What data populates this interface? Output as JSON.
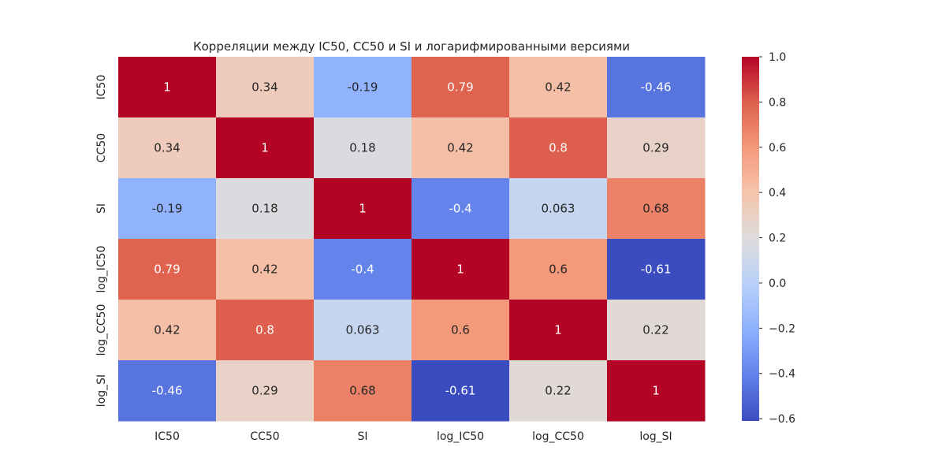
{
  "chart_data": {
    "type": "heatmap",
    "title": "Корреляции между IC50, CC50 и SI и логарифмированными версиями",
    "x_labels": [
      "IC50",
      "CC50",
      "SI",
      "log_IC50",
      "log_CC50",
      "log_SI"
    ],
    "y_labels": [
      "IC50",
      "CC50",
      "SI",
      "log_IC50",
      "log_CC50",
      "log_SI"
    ],
    "values": [
      [
        1,
        0.34,
        -0.19,
        0.79,
        0.42,
        -0.46
      ],
      [
        0.34,
        1,
        0.18,
        0.42,
        0.8,
        0.29
      ],
      [
        -0.19,
        0.18,
        1,
        -0.4,
        0.063,
        0.68
      ],
      [
        0.79,
        0.42,
        -0.4,
        1,
        0.6,
        -0.61
      ],
      [
        0.42,
        0.8,
        0.063,
        0.6,
        1,
        0.22
      ],
      [
        -0.46,
        0.29,
        0.68,
        -0.61,
        0.22,
        1
      ]
    ],
    "value_labels": [
      [
        "1",
        "0.34",
        "-0.19",
        "0.79",
        "0.42",
        "-0.46"
      ],
      [
        "0.34",
        "1",
        "0.18",
        "0.42",
        "0.8",
        "0.29"
      ],
      [
        "-0.19",
        "0.18",
        "1",
        "-0.4",
        "0.063",
        "0.68"
      ],
      [
        "0.79",
        "0.42",
        "-0.4",
        "1",
        "0.6",
        "-0.61"
      ],
      [
        "0.42",
        "0.8",
        "0.063",
        "0.6",
        "1",
        "0.22"
      ],
      [
        "-0.46",
        "0.29",
        "0.68",
        "-0.61",
        "0.22",
        "1"
      ]
    ],
    "colormap": "coolwarm",
    "vmin": -0.61,
    "vmax": 1.0,
    "colorbar_ticks": [
      1.0,
      0.8,
      0.6,
      0.4,
      0.2,
      0.0,
      -0.2,
      -0.4,
      -0.6
    ],
    "colorbar_tick_labels": [
      "1.0",
      "0.8",
      "0.6",
      "0.4",
      "0.2",
      "0.0",
      "−0.2",
      "−0.4",
      "−0.6"
    ],
    "legend_position": "right",
    "grid": false
  }
}
